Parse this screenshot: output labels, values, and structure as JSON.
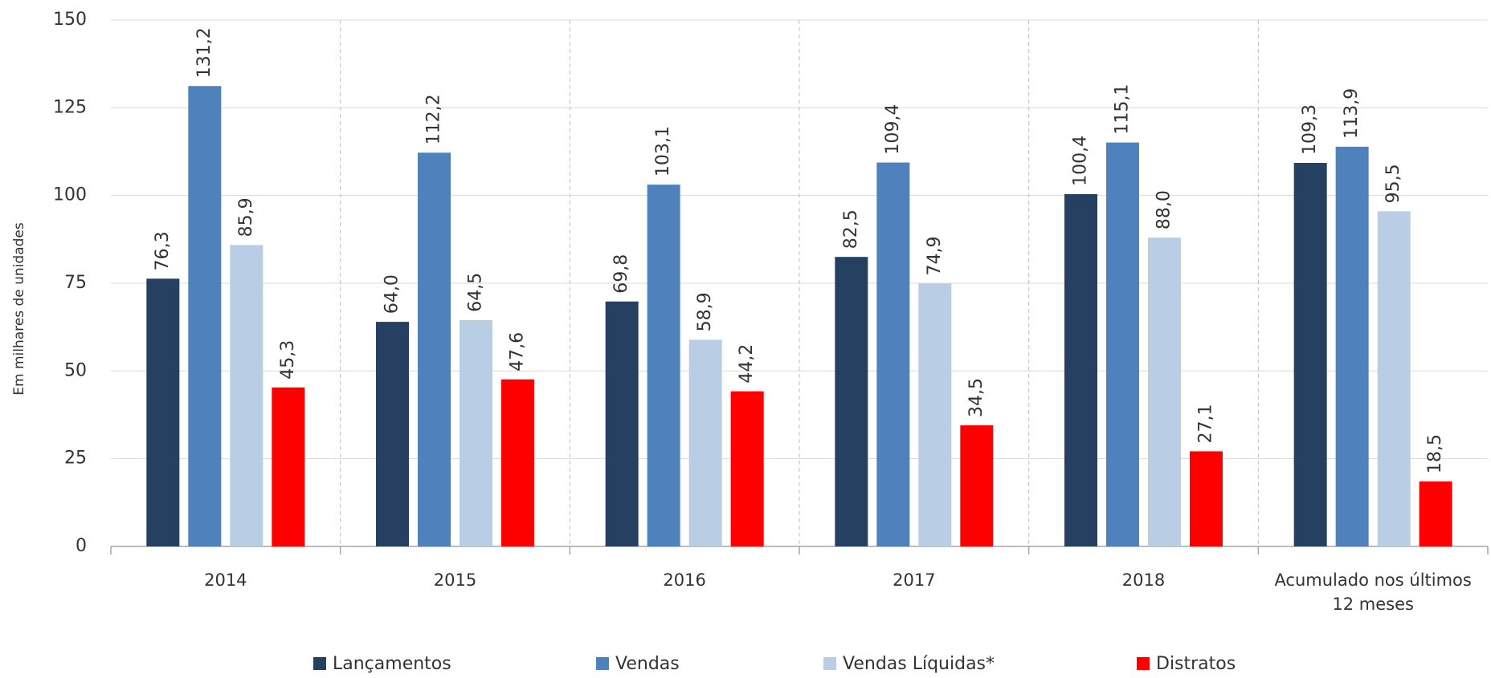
{
  "chart_data": {
    "type": "bar",
    "y_axis_label": "Em milhares de unidades",
    "categories": [
      "2014",
      "2015",
      "2016",
      "2017",
      "2018",
      "Acumulado nos últimos 12 meses"
    ],
    "series": [
      {
        "name": "Lançamentos",
        "color": "#264061",
        "values": [
          76.3,
          64.0,
          69.8,
          82.5,
          100.4,
          109.3
        ],
        "value_labels": [
          "76,3",
          "64,0",
          "69,8",
          "82,5",
          "100,4",
          "109,3"
        ]
      },
      {
        "name": "Vendas",
        "color": "#4f81bd",
        "values": [
          131.2,
          112.2,
          103.1,
          109.4,
          115.1,
          113.9
        ],
        "value_labels": [
          "131,2",
          "112,2",
          "103,1",
          "109,4",
          "115,1",
          "113,9"
        ]
      },
      {
        "name": "Vendas Líquidas*",
        "color": "#b9cde5",
        "values": [
          85.9,
          64.5,
          58.9,
          74.9,
          88.0,
          95.5
        ],
        "value_labels": [
          "85,9",
          "64,5",
          "58,9",
          "74,9",
          "88,0",
          "95,5"
        ]
      },
      {
        "name": "Distratos",
        "color": "#ff0000",
        "values": [
          45.3,
          47.6,
          44.2,
          34.5,
          27.1,
          18.5
        ],
        "value_labels": [
          "45,3",
          "47,6",
          "44,2",
          "34,5",
          "27,1",
          "18,5"
        ]
      }
    ],
    "ylim": [
      0,
      150
    ],
    "yticks": [
      0,
      25,
      50,
      75,
      100,
      125,
      150
    ],
    "grid": true,
    "legend": "bottom"
  }
}
